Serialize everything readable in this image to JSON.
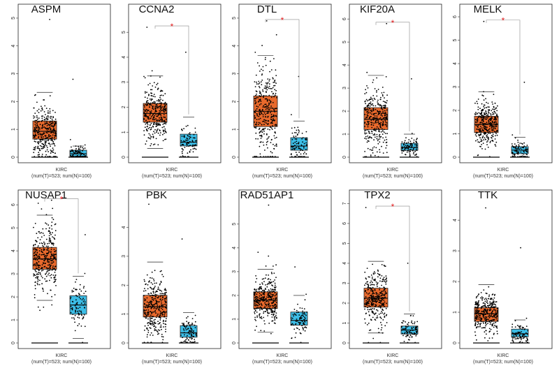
{
  "colors": {
    "tumor": "#e8692c",
    "normal": "#3cbde6",
    "significance": "#e41a1c",
    "points": "#000000"
  },
  "chart_data": [
    {
      "type": "box",
      "gene": "ASPM",
      "significant": false,
      "ylim": [
        0,
        5.3
      ],
      "ticks": [
        0,
        1,
        2,
        3,
        4,
        5
      ],
      "tumor": {
        "q1": 0.65,
        "median": 0.93,
        "q3": 1.3,
        "whisker_low": 0,
        "whisker_high": 2.33,
        "max": 4.95
      },
      "normal": {
        "q1": 0.03,
        "median": 0.12,
        "q3": 0.25,
        "whisker_low": 0,
        "whisker_high": 0.4,
        "max": 2.8
      },
      "dataset": "KIRC",
      "sample_label": "(num(T)=523; num(N)=100)"
    },
    {
      "type": "box",
      "gene": "CCNA2",
      "significant": true,
      "ylim": [
        0,
        5.9
      ],
      "ticks": [
        0,
        1,
        2,
        3,
        4,
        5
      ],
      "tumor": {
        "q1": 1.4,
        "median": 1.75,
        "q3": 2.15,
        "whisker_low": 0.35,
        "whisker_high": 3.25,
        "max": 5.2
      },
      "normal": {
        "q1": 0.45,
        "median": 0.6,
        "q3": 0.92,
        "whisker_low": 0,
        "whisker_high": 1.6,
        "max": 4.2
      },
      "dataset": "KIRC",
      "sample_label": "(num(T)=523; num(N)=100)"
    },
    {
      "type": "box",
      "gene": "DTL",
      "significant": true,
      "ylim": [
        0,
        5.3
      ],
      "ticks": [
        0,
        1,
        2,
        3,
        4,
        5
      ],
      "tumor": {
        "q1": 1.1,
        "median": 1.65,
        "q3": 2.2,
        "whisker_low": 0,
        "whisker_high": 3.65,
        "max": 4.9
      },
      "normal": {
        "q1": 0.25,
        "median": 0.4,
        "q3": 0.7,
        "whisker_low": 0,
        "whisker_high": 1.3,
        "max": 2.9
      },
      "dataset": "KIRC",
      "sample_label": "(num(T)=523; num(N)=100)"
    },
    {
      "type": "box",
      "gene": "KIF20A",
      "significant": true,
      "ylim": [
        0,
        6.4
      ],
      "ticks": [
        0,
        1,
        2,
        3,
        4,
        5,
        6
      ],
      "tumor": {
        "q1": 1.2,
        "median": 1.65,
        "q3": 2.15,
        "whisker_low": 0,
        "whisker_high": 3.55,
        "max": 5.8
      },
      "normal": {
        "q1": 0.3,
        "median": 0.42,
        "q3": 0.6,
        "whisker_low": 0,
        "whisker_high": 1.0,
        "max": 3.4
      },
      "dataset": "KIRC",
      "sample_label": "(num(T)=523; num(N)=100)"
    },
    {
      "type": "box",
      "gene": "MELK",
      "significant": true,
      "ylim": [
        0,
        6.3
      ],
      "ticks": [
        0,
        1,
        2,
        3,
        4,
        5,
        6
      ],
      "tumor": {
        "q1": 1.05,
        "median": 1.4,
        "q3": 1.75,
        "whisker_low": 0,
        "whisker_high": 2.8,
        "max": 5.8
      },
      "normal": {
        "q1": 0.15,
        "median": 0.3,
        "q3": 0.45,
        "whisker_low": 0,
        "whisker_high": 0.85,
        "max": 3.2
      },
      "dataset": "KIRC",
      "sample_label": "(num(T)=523; num(N)=100)"
    },
    {
      "type": "box",
      "gene": "NUSAP1",
      "significant": true,
      "ylim": [
        0,
        6.4
      ],
      "ticks": [
        0,
        1,
        2,
        3,
        4,
        5,
        6
      ],
      "tumor": {
        "q1": 3.2,
        "median": 3.65,
        "q3": 4.15,
        "whisker_low": 1.85,
        "whisker_high": 5.55,
        "max": 6.2
      },
      "normal": {
        "q1": 1.25,
        "median": 1.65,
        "q3": 2.05,
        "whisker_low": 0.2,
        "whisker_high": 2.9,
        "max": 4.7
      },
      "dataset": "KIRC",
      "sample_label": "(num(T)=523; num(N)=100)"
    },
    {
      "type": "box",
      "gene": "PBK",
      "significant": false,
      "ylim": [
        0,
        5.1
      ],
      "ticks": [
        0,
        1,
        2,
        3,
        4
      ],
      "tumor": {
        "q1": 0.9,
        "median": 1.25,
        "q3": 1.65,
        "whisker_low": 0,
        "whisker_high": 2.8,
        "max": 4.8
      },
      "normal": {
        "q1": 0.2,
        "median": 0.35,
        "q3": 0.6,
        "whisker_low": 0,
        "whisker_high": 1.05,
        "max": 3.6
      },
      "dataset": "KIRC",
      "sample_label": "(num(T)=523; num(N)=100)"
    },
    {
      "type": "box",
      "gene": "RAD51AP1",
      "significant": false,
      "ylim": [
        0,
        6.2
      ],
      "ticks": [
        0,
        1,
        2,
        3,
        4,
        5
      ],
      "tumor": {
        "q1": 1.45,
        "median": 1.8,
        "q3": 2.15,
        "whisker_low": 0.45,
        "whisker_high": 3.1,
        "max": 5.8
      },
      "normal": {
        "q1": 0.75,
        "median": 0.95,
        "q3": 1.3,
        "whisker_low": 0,
        "whisker_high": 2.0,
        "max": 3.2
      },
      "dataset": "KIRC",
      "sample_label": "(num(T)=523; num(N)=100)"
    },
    {
      "type": "box",
      "gene": "TPX2",
      "significant": true,
      "ylim": [
        0,
        7.4
      ],
      "ticks": [
        0,
        1,
        2,
        3,
        4,
        5,
        6,
        7
      ],
      "tumor": {
        "q1": 1.8,
        "median": 2.25,
        "q3": 2.75,
        "whisker_low": 0.5,
        "whisker_high": 4.1,
        "max": 6.8
      },
      "normal": {
        "q1": 0.45,
        "median": 0.65,
        "q3": 0.85,
        "whisker_low": 0,
        "whisker_high": 1.45,
        "max": 4.0
      },
      "dataset": "KIRC",
      "sample_label": "(num(T)=523; num(N)=100)"
    },
    {
      "type": "box",
      "gene": "TTK",
      "significant": false,
      "ylim": [
        0,
        4.8
      ],
      "ticks": [
        0,
        1,
        2,
        3,
        4
      ],
      "tumor": {
        "q1": 0.7,
        "median": 0.95,
        "q3": 1.15,
        "whisker_low": 0,
        "whisker_high": 1.9,
        "max": 4.4
      },
      "normal": {
        "q1": 0.2,
        "median": 0.3,
        "q3": 0.45,
        "whisker_low": 0,
        "whisker_high": 0.75,
        "max": 3.1
      },
      "dataset": "KIRC",
      "sample_label": "(num(T)=523; num(N)=100)"
    }
  ],
  "significance_symbol": "*"
}
